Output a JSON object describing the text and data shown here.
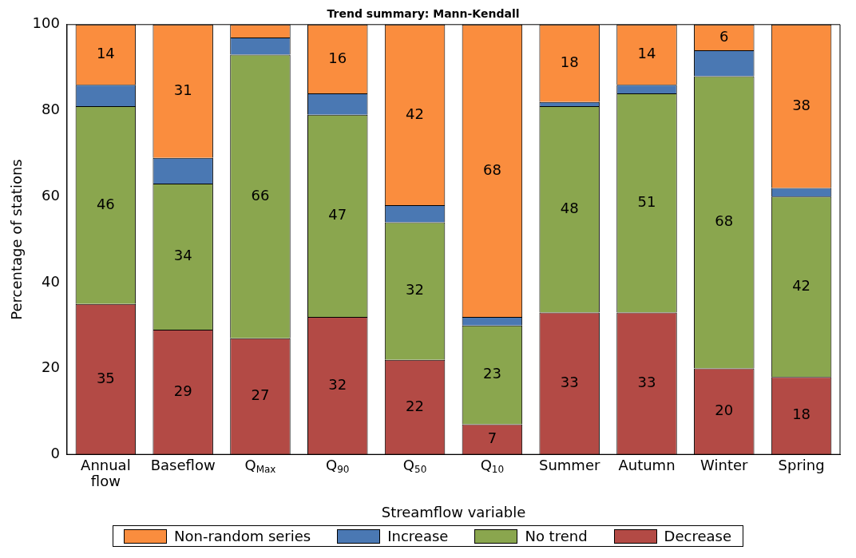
{
  "chart_data": {
    "type": "bar",
    "title": "Trend summary: Mann-Kendall",
    "xlabel": "Streamflow variable",
    "ylabel": "Percentage of stations",
    "categories": [
      "Annual flow",
      "Baseflow",
      "Q$_{Max}$",
      "Q$_{90}$",
      "Q$_{50}$",
      "Q$_{10}$",
      "Summer",
      "Autumn",
      "Winter",
      "Spring"
    ],
    "stacked": true,
    "ylim": [
      0,
      100
    ],
    "yticks": [
      0,
      20,
      40,
      60,
      80,
      100
    ],
    "grid": false,
    "legend": "bottom",
    "series": [
      {
        "name": "Decrease",
        "color": "#b34a45",
        "values": [
          35,
          29,
          27,
          32,
          22,
          7,
          33,
          33,
          20,
          18
        ],
        "value_labels": [
          "35",
          "29",
          "27",
          "32",
          "22",
          "7",
          "33",
          "33",
          "20",
          "18"
        ]
      },
      {
        "name": "No trend",
        "color": "#8aa64e",
        "values": [
          46,
          34,
          66,
          47,
          32,
          23,
          48,
          51,
          68,
          42
        ],
        "value_labels": [
          "46",
          "34",
          "66",
          "47",
          "32",
          "23",
          "48",
          "51",
          "68",
          "42"
        ]
      },
      {
        "name": "Increase",
        "color": "#4a78b3",
        "values": [
          5,
          6,
          4,
          5,
          4,
          2,
          1,
          2,
          6,
          2
        ]
      },
      {
        "name": "Non-random series",
        "color": "#fa8d3e",
        "values": [
          14,
          31,
          3,
          16,
          42,
          68,
          18,
          14,
          6,
          38
        ],
        "value_labels": [
          "14",
          "31",
          null,
          "16",
          "42",
          "68",
          "18",
          "14",
          "6",
          "38"
        ]
      }
    ]
  }
}
